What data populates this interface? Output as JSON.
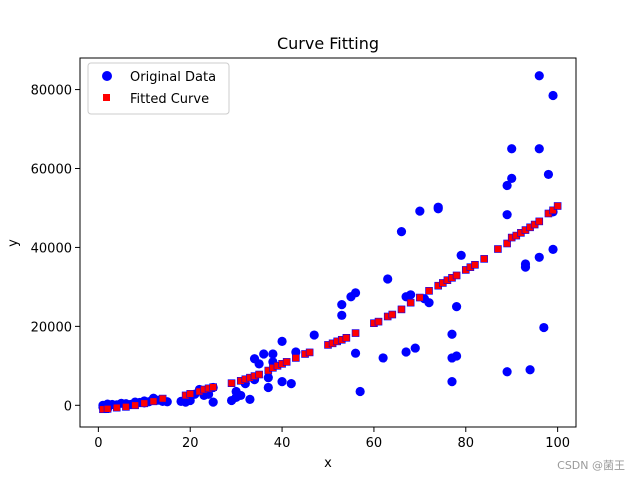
{
  "chart_data": {
    "type": "scatter",
    "title": "Curve Fitting",
    "xlabel": "x",
    "ylabel": "y",
    "xlim": [
      -4,
      104
    ],
    "ylim": [
      -5500,
      88000
    ],
    "xticks": [
      0,
      20,
      40,
      60,
      80,
      100
    ],
    "yticks": [
      0,
      20000,
      40000,
      60000,
      80000
    ],
    "xtick_labels": [
      "0",
      "20",
      "40",
      "60",
      "80",
      "100"
    ],
    "ytick_labels": [
      "0",
      "20000",
      "40000",
      "60000",
      "80000"
    ],
    "grid": false,
    "legend_position": "top-left",
    "colors": {
      "original": "#0000ff",
      "fitted": "#ff0000"
    },
    "series": [
      {
        "name": "Original Data",
        "marker": "circle",
        "points": [
          [
            1,
            0
          ],
          [
            1,
            -500
          ],
          [
            2,
            -800
          ],
          [
            2,
            300
          ],
          [
            3,
            200
          ],
          [
            4,
            100
          ],
          [
            5,
            500
          ],
          [
            6,
            400
          ],
          [
            7,
            200
          ],
          [
            8,
            800
          ],
          [
            9,
            700
          ],
          [
            10,
            1100
          ],
          [
            10,
            600
          ],
          [
            11,
            900
          ],
          [
            12,
            1800
          ],
          [
            13,
            1300
          ],
          [
            14,
            1000
          ],
          [
            15,
            900
          ],
          [
            18,
            1000
          ],
          [
            19,
            800
          ],
          [
            20,
            1200
          ],
          [
            21,
            2800
          ],
          [
            22,
            4000
          ],
          [
            23,
            2500
          ],
          [
            24,
            2800
          ],
          [
            25,
            800
          ],
          [
            25,
            4500
          ],
          [
            29,
            1200
          ],
          [
            30,
            2000
          ],
          [
            30,
            3500
          ],
          [
            31,
            2500
          ],
          [
            32,
            5500
          ],
          [
            33,
            1500
          ],
          [
            34,
            6500
          ],
          [
            34,
            11800
          ],
          [
            35,
            10500
          ],
          [
            36,
            13000
          ],
          [
            37,
            4500
          ],
          [
            37,
            7000
          ],
          [
            38,
            13000
          ],
          [
            38,
            11000
          ],
          [
            40,
            6000
          ],
          [
            40,
            16200
          ],
          [
            42,
            5500
          ],
          [
            43,
            13500
          ],
          [
            47,
            17800
          ],
          [
            53,
            22800
          ],
          [
            53,
            25500
          ],
          [
            55,
            27500
          ],
          [
            56,
            13200
          ],
          [
            56,
            28500
          ],
          [
            57,
            3500
          ],
          [
            62,
            12000
          ],
          [
            63,
            32000
          ],
          [
            66,
            44000
          ],
          [
            67,
            13500
          ],
          [
            67,
            27500
          ],
          [
            68,
            28000
          ],
          [
            69,
            14500
          ],
          [
            70,
            49200
          ],
          [
            71,
            27000
          ],
          [
            72,
            26000
          ],
          [
            74,
            49800
          ],
          [
            74,
            50200
          ],
          [
            77,
            6000
          ],
          [
            77,
            12000
          ],
          [
            77,
            18000
          ],
          [
            78,
            12500
          ],
          [
            78,
            25000
          ],
          [
            79,
            38000
          ],
          [
            89,
            8500
          ],
          [
            89,
            48300
          ],
          [
            89,
            55700
          ],
          [
            90,
            57500
          ],
          [
            90,
            65000
          ],
          [
            93,
            35000
          ],
          [
            93,
            35800
          ],
          [
            94,
            9000
          ],
          [
            96,
            37500
          ],
          [
            96,
            65000
          ],
          [
            96,
            83500
          ],
          [
            97,
            19700
          ],
          [
            98,
            58500
          ],
          [
            99,
            39500
          ],
          [
            99,
            49000
          ],
          [
            99,
            78500
          ]
        ]
      },
      {
        "name": "Fitted Curve",
        "marker": "square",
        "points": [
          [
            1,
            -1000
          ],
          [
            2,
            -900
          ],
          [
            4,
            -600
          ],
          [
            6,
            -400
          ],
          [
            8,
            0
          ],
          [
            10,
            500
          ],
          [
            12,
            1000
          ],
          [
            14,
            1700
          ],
          [
            19,
            2500
          ],
          [
            20,
            2900
          ],
          [
            22,
            3500
          ],
          [
            23,
            4000
          ],
          [
            24,
            4300
          ],
          [
            25,
            4600
          ],
          [
            29,
            5600
          ],
          [
            31,
            6200
          ],
          [
            32,
            6600
          ],
          [
            33,
            7000
          ],
          [
            34,
            7400
          ],
          [
            35,
            7800
          ],
          [
            37,
            8800
          ],
          [
            38,
            9500
          ],
          [
            39,
            10000
          ],
          [
            40,
            10500
          ],
          [
            41,
            11000
          ],
          [
            43,
            12000
          ],
          [
            45,
            13000
          ],
          [
            46,
            13400
          ],
          [
            50,
            15300
          ],
          [
            51,
            15700
          ],
          [
            52,
            16200
          ],
          [
            53,
            16600
          ],
          [
            54,
            17100
          ],
          [
            56,
            18300
          ],
          [
            60,
            20800
          ],
          [
            61,
            21200
          ],
          [
            63,
            22500
          ],
          [
            64,
            23000
          ],
          [
            66,
            24300
          ],
          [
            68,
            26000
          ],
          [
            70,
            27300
          ],
          [
            72,
            29000
          ],
          [
            74,
            30300
          ],
          [
            75,
            31000
          ],
          [
            76,
            31700
          ],
          [
            77,
            32300
          ],
          [
            78,
            32900
          ],
          [
            80,
            34300
          ],
          [
            81,
            35000
          ],
          [
            82,
            35600
          ],
          [
            84,
            37100
          ],
          [
            87,
            39600
          ],
          [
            89,
            41000
          ],
          [
            90,
            42500
          ],
          [
            91,
            43000
          ],
          [
            92,
            43700
          ],
          [
            93,
            44400
          ],
          [
            94,
            45100
          ],
          [
            95,
            45800
          ],
          [
            96,
            46600
          ],
          [
            98,
            48600
          ],
          [
            99,
            49400
          ],
          [
            100,
            50500
          ]
        ]
      }
    ]
  },
  "watermark": "CSDN @菌王"
}
